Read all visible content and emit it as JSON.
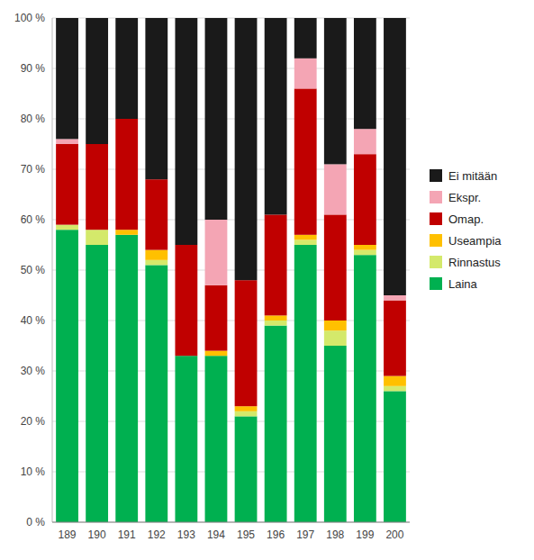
{
  "chart_data": {
    "type": "bar",
    "stacked": true,
    "grid": true,
    "legend": "right",
    "categories": [
      "189",
      "190",
      "191",
      "192",
      "193",
      "194",
      "195",
      "196",
      "197",
      "198",
      "199",
      "200"
    ],
    "series": [
      {
        "name": "Laina",
        "color": "#00b050",
        "values": [
          58,
          55,
          57,
          51,
          33,
          33,
          21,
          39,
          55,
          35,
          53,
          26
        ]
      },
      {
        "name": "Rinnastus",
        "color": "#d4e96b",
        "values": [
          1,
          3,
          0,
          1,
          0,
          0,
          1,
          1,
          1,
          3,
          1,
          1
        ]
      },
      {
        "name": "Useampia",
        "color": "#ffc000",
        "values": [
          0,
          0,
          1,
          2,
          0,
          1,
          1,
          1,
          1,
          2,
          1,
          2
        ]
      },
      {
        "name": "Omap.",
        "color": "#c00000",
        "values": [
          16,
          17,
          22,
          14,
          22,
          13,
          25,
          20,
          29,
          21,
          18,
          15
        ]
      },
      {
        "name": "Ekspr.",
        "color": "#f4a5b4",
        "values": [
          1,
          0,
          0,
          0,
          0,
          13,
          0,
          0,
          6,
          10,
          5,
          1
        ]
      },
      {
        "name": "Ei mitään",
        "color": "#1a1a1a",
        "values": [
          24,
          25,
          20,
          32,
          45,
          40,
          52,
          39,
          8,
          29,
          22,
          55
        ]
      }
    ],
    "ylim": [
      0,
      100
    ],
    "yticks": [
      {
        "value": 0,
        "label": "0 %"
      },
      {
        "value": 10,
        "label": "10 %"
      },
      {
        "value": 20,
        "label": "20 %"
      },
      {
        "value": 30,
        "label": "30 %"
      },
      {
        "value": 40,
        "label": "40 %"
      },
      {
        "value": 50,
        "label": "50 %"
      },
      {
        "value": 60,
        "label": "60 %"
      },
      {
        "value": 70,
        "label": "70 %"
      },
      {
        "value": 80,
        "label": "80 %"
      },
      {
        "value": 90,
        "label": "90 %"
      },
      {
        "value": 100,
        "label": "100 %"
      }
    ]
  }
}
